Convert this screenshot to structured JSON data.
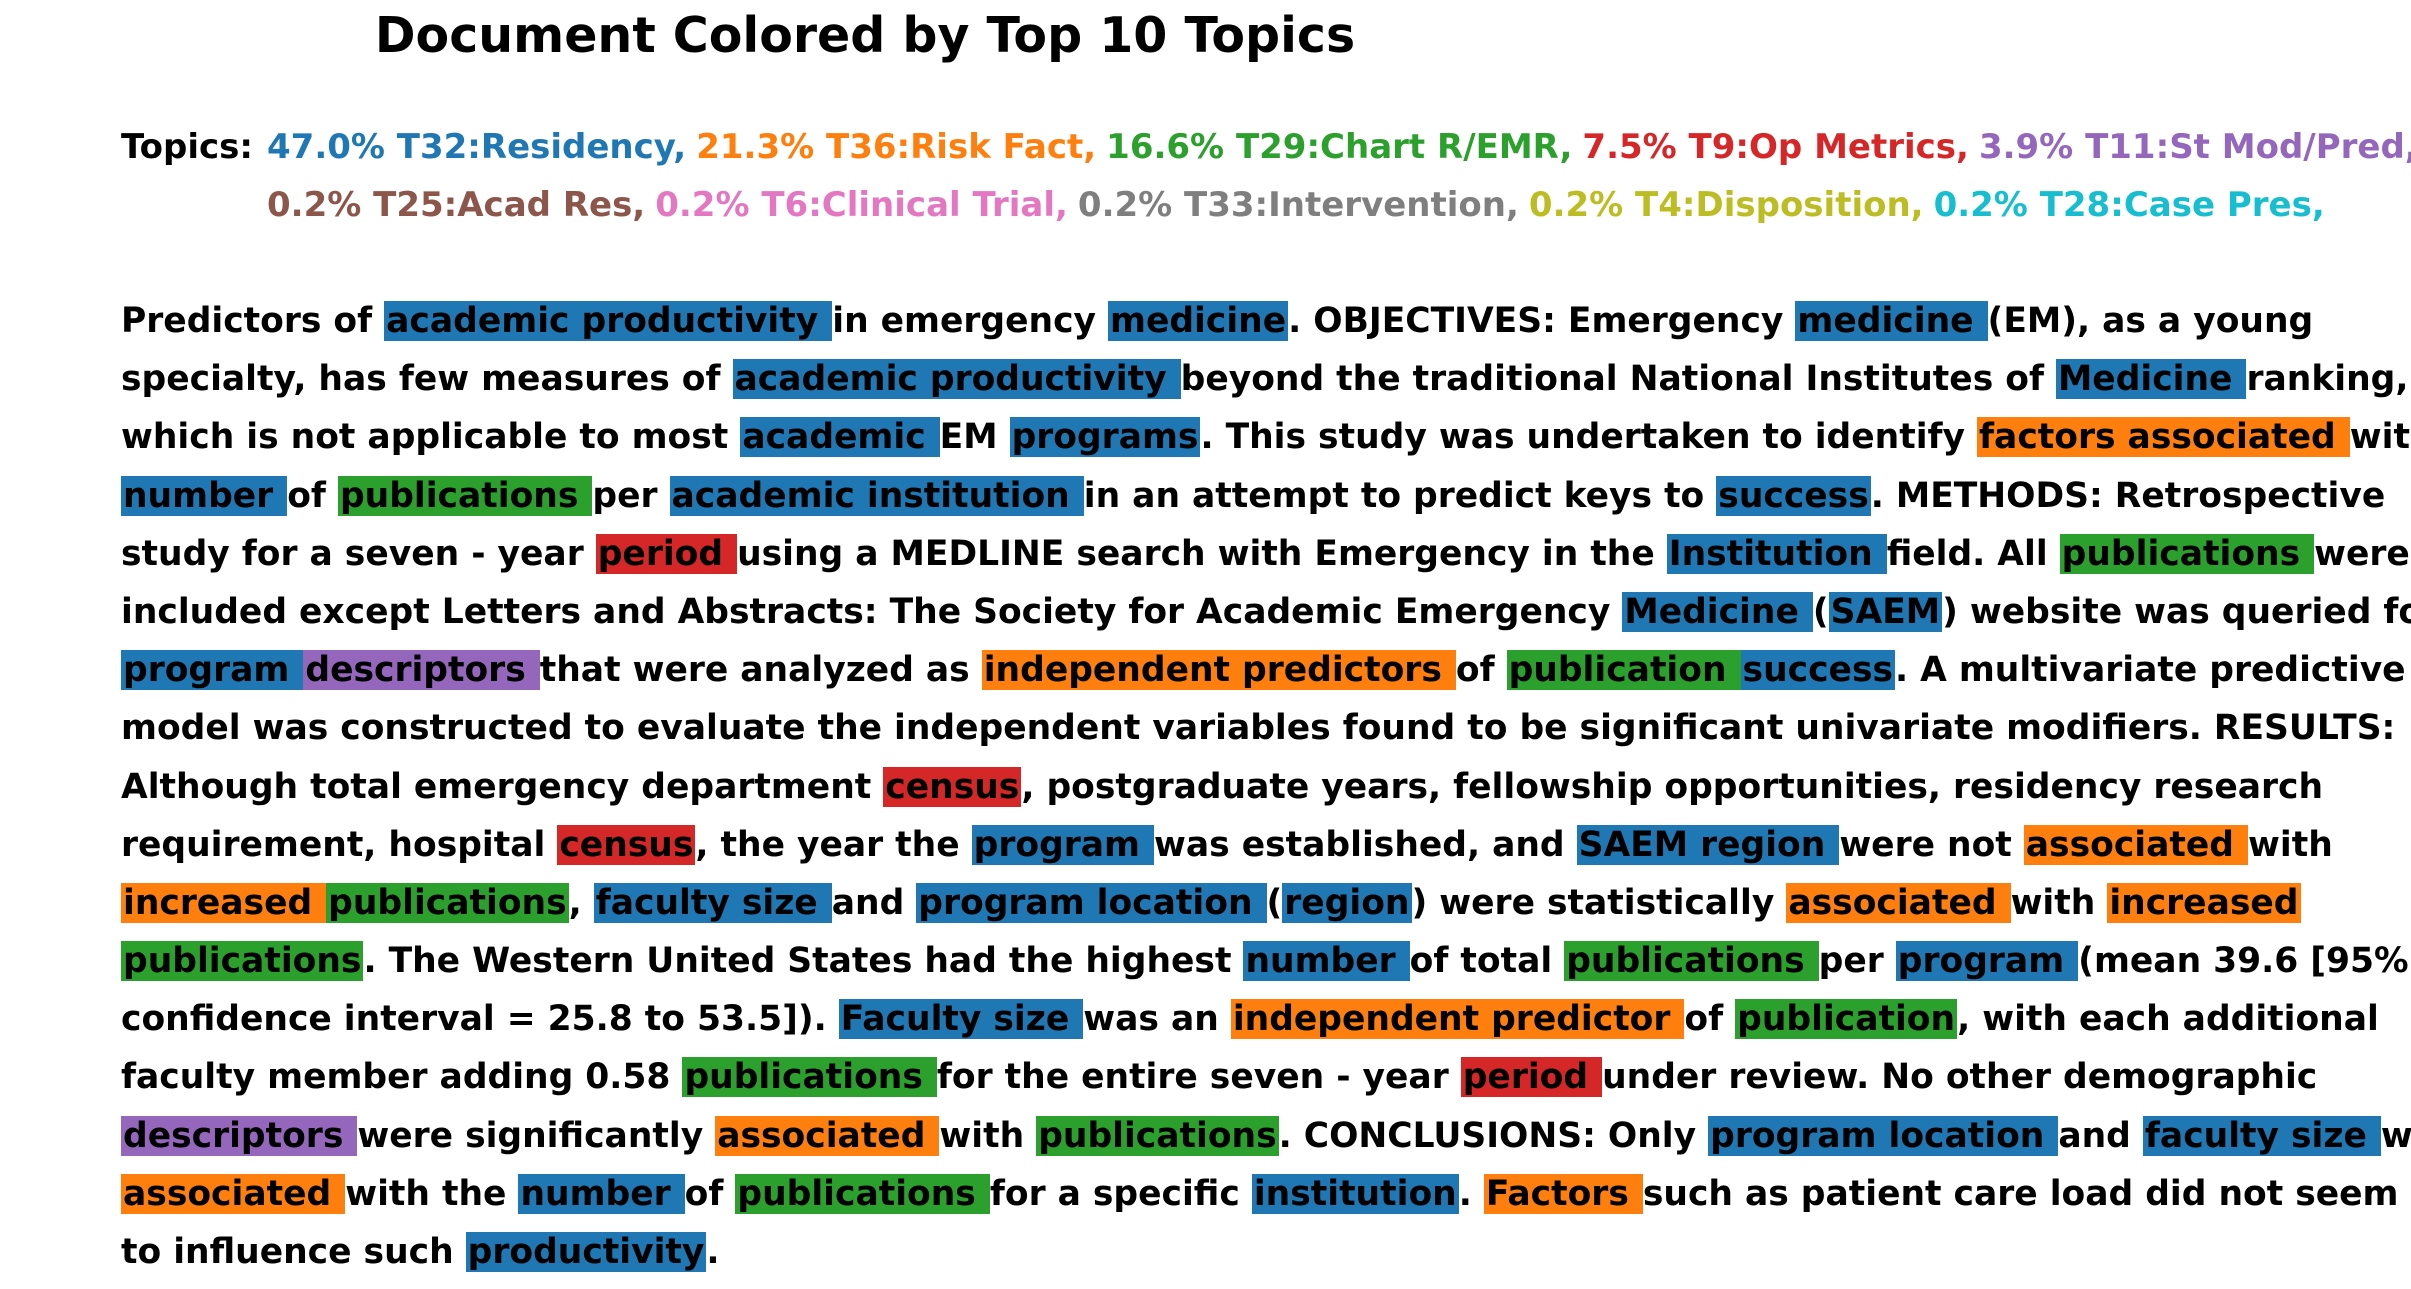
{
  "title": "Document Colored by Top 10 Topics",
  "topics_label": "Topics:",
  "topics": [
    {
      "text": "47.0% T32:Residency,",
      "color": "#1f77b4"
    },
    {
      "text": "21.3% T36:Risk Fact,",
      "color": "#ff7f0e"
    },
    {
      "text": "16.6% T29:Chart R/EMR,",
      "color": "#2ca02c"
    },
    {
      "text": "7.5% T9:Op Metrics,",
      "color": "#d62728"
    },
    {
      "text": "3.9% T11:St Mod/Pred,",
      "color": "#9467bd"
    },
    {
      "text": "0.2% T25:Acad Res,",
      "color": "#8c564b"
    },
    {
      "text": "0.2% T6:Clinical Trial,",
      "color": "#e377c2"
    },
    {
      "text": "0.2% T33:Intervention,",
      "color": "#7f7f7f"
    },
    {
      "text": "0.2% T4:Disposition,",
      "color": "#bcbd22"
    },
    {
      "text": "0.2% T28:Case Pres,",
      "color": "#17becf"
    }
  ],
  "topics_first_row_count": 5,
  "topic_highlight_colors": {
    "T32": "#1f77b4",
    "T36": "#ff7f0e",
    "T29": "#2ca02c",
    "T9": "#d62728",
    "T11": "#9467bd"
  },
  "document_lines": [
    [
      [
        "Predictors of ",
        ""
      ],
      [
        "academic productivity ",
        "T32"
      ],
      [
        "in emergency ",
        ""
      ],
      [
        "medicine",
        "T32"
      ],
      [
        ". OBJECTIVES: Emergency ",
        ""
      ],
      [
        "medicine ",
        "T32"
      ],
      [
        "(EM), as a young",
        ""
      ]
    ],
    [
      [
        "specialty, has few measures of ",
        ""
      ],
      [
        "academic productivity ",
        "T32"
      ],
      [
        "beyond the traditional National Institutes of ",
        ""
      ],
      [
        "Medicine ",
        "T32"
      ],
      [
        "ranking,",
        ""
      ]
    ],
    [
      [
        "which is not applicable to most ",
        ""
      ],
      [
        "academic ",
        "T32"
      ],
      [
        "EM ",
        ""
      ],
      [
        "programs",
        "T32"
      ],
      [
        ". This study was undertaken to identify ",
        ""
      ],
      [
        "factors associated ",
        "T36"
      ],
      [
        "with",
        ""
      ]
    ],
    [
      [
        "number ",
        "T32"
      ],
      [
        "of ",
        ""
      ],
      [
        "publications ",
        "T29"
      ],
      [
        "per ",
        ""
      ],
      [
        "academic institution ",
        "T32"
      ],
      [
        "in an attempt to predict keys to ",
        ""
      ],
      [
        "success",
        "T32"
      ],
      [
        ". METHODS: Retrospective",
        ""
      ]
    ],
    [
      [
        "study for a seven - year ",
        ""
      ],
      [
        "period ",
        "T9"
      ],
      [
        "using a MEDLINE search with Emergency in the ",
        ""
      ],
      [
        "Institution ",
        "T32"
      ],
      [
        "field. All ",
        ""
      ],
      [
        "publications ",
        "T29"
      ],
      [
        "were",
        ""
      ]
    ],
    [
      [
        "included except Letters and Abstracts: The Society for Academic Emergency ",
        ""
      ],
      [
        "Medicine ",
        "T32"
      ],
      [
        "(",
        ""
      ],
      [
        "SAEM",
        "T32"
      ],
      [
        ") website was queried for",
        ""
      ]
    ],
    [
      [
        "program ",
        "T32"
      ],
      [
        "descriptors ",
        "T11"
      ],
      [
        "that were analyzed as ",
        ""
      ],
      [
        "independent predictors ",
        "T36"
      ],
      [
        "of ",
        ""
      ],
      [
        "publication ",
        "T29"
      ],
      [
        "success",
        "T32"
      ],
      [
        ". A multivariate predictive",
        ""
      ]
    ],
    [
      [
        "model was constructed to evaluate the independent variables found to be significant univariate modifiers. RESULTS:",
        ""
      ]
    ],
    [
      [
        "Although total emergency department ",
        ""
      ],
      [
        "census",
        "T9"
      ],
      [
        ", postgraduate years, fellowship opportunities, residency research",
        ""
      ]
    ],
    [
      [
        "requirement, hospital ",
        ""
      ],
      [
        "census",
        "T9"
      ],
      [
        ", the year the ",
        ""
      ],
      [
        "program ",
        "T32"
      ],
      [
        "was established, and ",
        ""
      ],
      [
        "SAEM region ",
        "T32"
      ],
      [
        "were not ",
        ""
      ],
      [
        "associated ",
        "T36"
      ],
      [
        "with",
        ""
      ]
    ],
    [
      [
        "increased ",
        "T36"
      ],
      [
        "publications",
        "T29"
      ],
      [
        ", ",
        ""
      ],
      [
        "faculty size ",
        "T32"
      ],
      [
        "and ",
        ""
      ],
      [
        "program location ",
        "T32"
      ],
      [
        "(",
        ""
      ],
      [
        "region",
        "T32"
      ],
      [
        ") were statistically ",
        ""
      ],
      [
        "associated ",
        "T36"
      ],
      [
        "with ",
        ""
      ],
      [
        "increased ",
        "T36"
      ]
    ],
    [
      [
        "publications",
        "T29"
      ],
      [
        ". The Western United States had the highest ",
        ""
      ],
      [
        "number ",
        "T32"
      ],
      [
        "of total ",
        ""
      ],
      [
        "publications ",
        "T29"
      ],
      [
        "per ",
        ""
      ],
      [
        "program ",
        "T32"
      ],
      [
        "(mean 39.6 [95%",
        ""
      ]
    ],
    [
      [
        "confidence interval = 25.8 to 53.5]). ",
        ""
      ],
      [
        "Faculty size ",
        "T32"
      ],
      [
        "was an ",
        ""
      ],
      [
        "independent predictor ",
        "T36"
      ],
      [
        "of ",
        ""
      ],
      [
        "publication",
        "T29"
      ],
      [
        ", with each additional",
        ""
      ]
    ],
    [
      [
        "faculty member adding 0.58 ",
        ""
      ],
      [
        "publications ",
        "T29"
      ],
      [
        "for the entire seven - year ",
        ""
      ],
      [
        "period ",
        "T9"
      ],
      [
        "under review. No other demographic",
        ""
      ]
    ],
    [
      [
        "descriptors ",
        "T11"
      ],
      [
        "were significantly ",
        ""
      ],
      [
        "associated ",
        "T36"
      ],
      [
        "with ",
        ""
      ],
      [
        "publications",
        "T29"
      ],
      [
        ". CONCLUSIONS: Only ",
        ""
      ],
      [
        "program location ",
        "T32"
      ],
      [
        "and ",
        ""
      ],
      [
        "faculty size ",
        "T32"
      ],
      [
        "were",
        ""
      ]
    ],
    [
      [
        "associated ",
        "T36"
      ],
      [
        "with the ",
        ""
      ],
      [
        "number ",
        "T32"
      ],
      [
        "of ",
        ""
      ],
      [
        "publications ",
        "T29"
      ],
      [
        "for a specific ",
        ""
      ],
      [
        "institution",
        "T32"
      ],
      [
        ". ",
        ""
      ],
      [
        "Factors ",
        "T36"
      ],
      [
        "such as patient care load did not seem",
        ""
      ]
    ],
    [
      [
        "to influence such ",
        ""
      ],
      [
        "productivity",
        "T32"
      ],
      [
        ".",
        ""
      ]
    ]
  ]
}
